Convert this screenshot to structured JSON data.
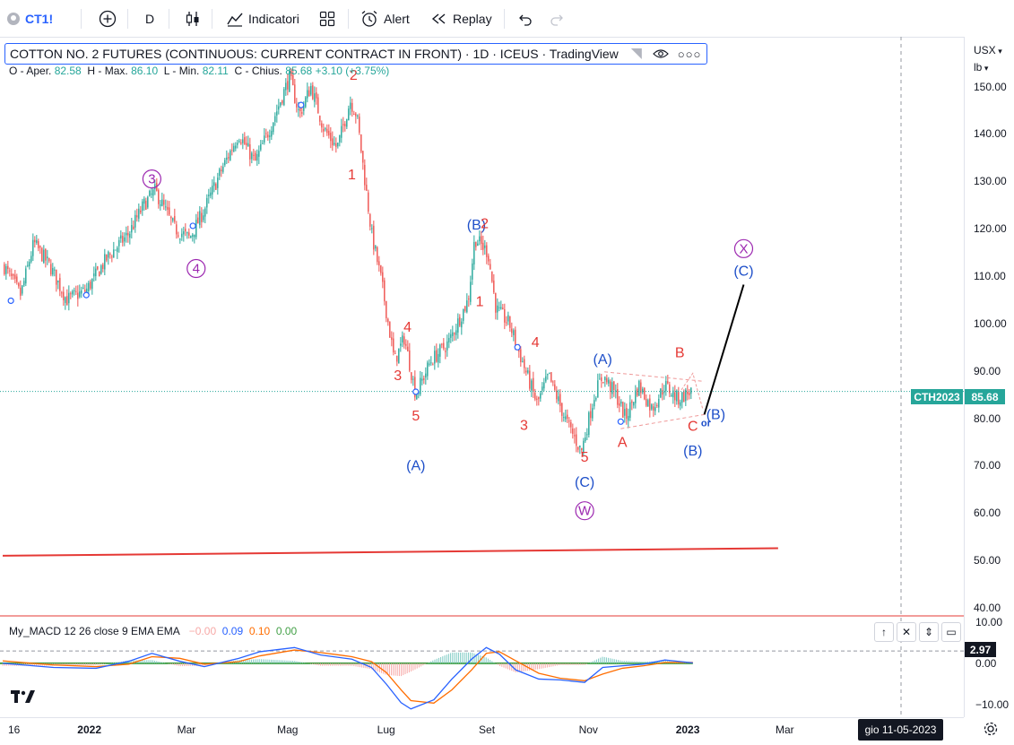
{
  "toolbar": {
    "symbol": "CT1!",
    "interval": "D",
    "indicators_label": "Indicatori",
    "alert_label": "Alert",
    "replay_label": "Replay"
  },
  "legend": {
    "title": "COTTON NO. 2 FUTURES (CONTINUOUS: CURRENT CONTRACT IN FRONT) · 1D · ICEUS · TradingView",
    "o_label": "O - Aper.",
    "o_value": "82.58",
    "h_label": "H - Max.",
    "h_value": "86.10",
    "l_label": "L - Min.",
    "l_value": "82.11",
    "c_label": "C - Chius.",
    "c_value": "85.68",
    "change": "+3.10 (+3.75%)"
  },
  "right_axis": {
    "currency": "USX",
    "unit": "lb",
    "price_badge_symbol": "CTH2023",
    "price_badge_value": "85.68",
    "macd_badge_value": "2.97"
  },
  "macd": {
    "name": "My_MACD 12 26 close 9 EMA EMA",
    "v1": "−0.00",
    "v2": "0.09",
    "v3": "0.10",
    "v4": "0.00"
  },
  "date_badge": "gio 11-05-2023",
  "colors": {
    "up": "#26a69a",
    "down": "#ef5350",
    "wave_red": "#e53935",
    "wave_blue": "#1e4fc9",
    "wave_purple": "#9c27b0",
    "macd_line": "#2962ff",
    "signal_line": "#ff6d00",
    "accent": "#2962ff"
  },
  "chart_data": {
    "type": "candlestick",
    "title": "COTTON NO. 2 FUTURES (CONTINUOUS: CURRENT CONTRACT IN FRONT) · 1D · ICEUS · TradingView",
    "price_axis": {
      "ticks": [
        "150.00",
        "140.00",
        "130.00",
        "120.00",
        "110.00",
        "100.00",
        "90.00",
        "80.00",
        "70.00",
        "60.00",
        "50.00",
        "40.00"
      ],
      "range": [
        38.5,
        160.5
      ]
    },
    "macd_axis": {
      "ticks": [
        "10.00",
        "0.00",
        "−10.00"
      ],
      "range": [
        -13,
        11
      ]
    },
    "time_axis": {
      "ticks": [
        "16",
        "2022",
        "Mar",
        "Mag",
        "Lug",
        "Set",
        "Nov",
        "2023",
        "Mar"
      ]
    },
    "price_path": [
      {
        "d": "2021-11-10",
        "p": 112
      },
      {
        "d": "2021-11-20",
        "p": 106
      },
      {
        "d": "2021-11-28",
        "p": 117
      },
      {
        "d": "2021-12-08",
        "p": 112
      },
      {
        "d": "2021-12-18",
        "p": 105
      },
      {
        "d": "2021-12-30",
        "p": 107
      },
      {
        "d": "2022-01-12",
        "p": 114
      },
      {
        "d": "2022-01-25",
        "p": 119
      },
      {
        "d": "2022-02-03",
        "p": 125
      },
      {
        "d": "2022-02-10",
        "p": 128
      },
      {
        "d": "2022-02-22",
        "p": 120
      },
      {
        "d": "2022-03-03",
        "p": 118
      },
      {
        "d": "2022-03-12",
        "p": 124
      },
      {
        "d": "2022-03-22",
        "p": 132
      },
      {
        "d": "2022-04-02",
        "p": 140
      },
      {
        "d": "2022-04-12",
        "p": 134
      },
      {
        "d": "2022-04-22",
        "p": 142
      },
      {
        "d": "2022-05-03",
        "p": 152
      },
      {
        "d": "2022-05-09",
        "p": 144
      },
      {
        "d": "2022-05-16",
        "p": 150
      },
      {
        "d": "2022-05-24",
        "p": 141
      },
      {
        "d": "2022-06-01",
        "p": 137
      },
      {
        "d": "2022-06-09",
        "p": 147
      },
      {
        "d": "2022-06-13",
        "p": 144
      },
      {
        "d": "2022-06-22",
        "p": 119
      },
      {
        "d": "2022-06-28",
        "p": 109
      },
      {
        "d": "2022-07-06",
        "p": 92
      },
      {
        "d": "2022-07-12",
        "p": 97
      },
      {
        "d": "2022-07-19",
        "p": 85
      },
      {
        "d": "2022-07-28",
        "p": 92
      },
      {
        "d": "2022-08-08",
        "p": 96
      },
      {
        "d": "2022-08-20",
        "p": 105
      },
      {
        "d": "2022-08-24",
        "p": 118
      },
      {
        "d": "2022-09-01",
        "p": 115
      },
      {
        "d": "2022-09-06",
        "p": 103
      },
      {
        "d": "2022-09-14",
        "p": 100
      },
      {
        "d": "2022-09-22",
        "p": 92
      },
      {
        "d": "2022-10-01",
        "p": 83
      },
      {
        "d": "2022-10-08",
        "p": 89
      },
      {
        "d": "2022-10-18",
        "p": 80
      },
      {
        "d": "2022-10-28",
        "p": 73
      },
      {
        "d": "2022-11-05",
        "p": 85
      },
      {
        "d": "2022-11-10",
        "p": 89
      },
      {
        "d": "2022-11-18",
        "p": 85
      },
      {
        "d": "2022-11-24",
        "p": 80
      },
      {
        "d": "2022-12-02",
        "p": 87
      },
      {
        "d": "2022-12-10",
        "p": 82
      },
      {
        "d": "2022-12-18",
        "p": 87
      },
      {
        "d": "2022-12-26",
        "p": 84
      },
      {
        "d": "2023-01-04",
        "p": 86
      }
    ],
    "last_close": 85.68,
    "horizontal_lines": [
      {
        "value": 85.68,
        "style": "dotted",
        "color": "#26a69a"
      }
    ],
    "red_trendline": [
      {
        "d": "2021-11-09",
        "p": 51.0
      },
      {
        "d": "2023-02-25",
        "p": 52.6
      }
    ],
    "wave_labels": [
      {
        "t": "③",
        "d": "2022-02-08",
        "p": 130.5,
        "c": "purple"
      },
      {
        "t": "④",
        "d": "2022-03-07",
        "p": 111.6,
        "c": "purple"
      },
      {
        "t": "2",
        "d": "2022-06-11",
        "p": 152.4,
        "c": "red"
      },
      {
        "t": "1",
        "d": "2022-06-10",
        "p": 131.4,
        "c": "red"
      },
      {
        "t": "4",
        "d": "2022-07-14",
        "p": 99.2,
        "c": "red"
      },
      {
        "t": "3",
        "d": "2022-07-08",
        "p": 89.0,
        "c": "red"
      },
      {
        "t": "5",
        "d": "2022-07-19",
        "p": 80.5,
        "c": "red"
      },
      {
        "t": "(A)",
        "d": "2022-07-19",
        "p": 70.0,
        "c": "blue"
      },
      {
        "t": "(B)",
        "d": "2022-08-25",
        "p": 120.8,
        "c": "blue"
      },
      {
        "t": "2",
        "d": "2022-08-30",
        "p": 121.1,
        "c": "red"
      },
      {
        "t": "1",
        "d": "2022-08-27",
        "p": 104.6,
        "c": "red"
      },
      {
        "t": "4",
        "d": "2022-09-30",
        "p": 96.0,
        "c": "red"
      },
      {
        "t": "3",
        "d": "2022-09-23",
        "p": 78.5,
        "c": "red"
      },
      {
        "t": "5",
        "d": "2022-10-30",
        "p": 71.8,
        "c": "red"
      },
      {
        "t": "(C)",
        "d": "2022-10-30",
        "p": 66.5,
        "c": "blue"
      },
      {
        "t": "Ⓦ",
        "d": "2022-10-30",
        "p": 60.5,
        "c": "purple"
      },
      {
        "t": "(A)",
        "d": "2022-11-10",
        "p": 92.4,
        "c": "blue"
      },
      {
        "t": "B",
        "d": "2022-12-27",
        "p": 93.8,
        "c": "red"
      },
      {
        "t": "A",
        "d": "2022-11-22",
        "p": 74.9,
        "c": "red"
      },
      {
        "t": "C",
        "d": "2023-01-04",
        "p": 78.3,
        "c": "red"
      },
      {
        "t": "(B)",
        "d": "2023-01-04",
        "p": 73.1,
        "c": "blue"
      },
      {
        "t": "or",
        "d": "2023-01-12",
        "p": 79.3,
        "c": "blue"
      },
      {
        "t": "(B)",
        "d": "2023-01-18",
        "p": 80.8,
        "c": "blue"
      },
      {
        "t": "(C)",
        "d": "2023-02-04",
        "p": 111.0,
        "c": "blue"
      },
      {
        "t": "Ⓧ",
        "d": "2023-02-04",
        "p": 115.8,
        "c": "purple"
      }
    ],
    "projection_line": [
      {
        "d": "2023-01-11",
        "p": 80.8
      },
      {
        "d": "2023-02-04",
        "p": 108.2
      }
    ],
    "triangle_lines": [
      [
        {
          "d": "2022-11-11",
          "p": 89.8
        },
        {
          "d": "2023-01-11",
          "p": 87.8
        }
      ],
      [
        {
          "d": "2022-11-21",
          "p": 77.8
        },
        {
          "d": "2023-01-11",
          "p": 80.8
        }
      ]
    ],
    "macd_line": [
      {
        "d": "2021-11-09",
        "v": 0.0
      },
      {
        "d": "2021-12-10",
        "v": -1.0
      },
      {
        "d": "2022-01-05",
        "v": -1.2
      },
      {
        "d": "2022-01-25",
        "v": 0.5
      },
      {
        "d": "2022-02-08",
        "v": 2.4
      },
      {
        "d": "2022-02-25",
        "v": 0.5
      },
      {
        "d": "2022-03-12",
        "v": -0.8
      },
      {
        "d": "2022-04-02",
        "v": 1.2
      },
      {
        "d": "2022-04-15",
        "v": 2.8
      },
      {
        "d": "2022-05-06",
        "v": 3.8
      },
      {
        "d": "2022-05-22",
        "v": 2.0
      },
      {
        "d": "2022-06-10",
        "v": 1.0
      },
      {
        "d": "2022-06-22",
        "v": -1.0
      },
      {
        "d": "2022-07-01",
        "v": -5.0
      },
      {
        "d": "2022-07-10",
        "v": -9.5
      },
      {
        "d": "2022-07-16",
        "v": -11.0
      },
      {
        "d": "2022-07-30",
        "v": -8.8
      },
      {
        "d": "2022-08-10",
        "v": -3.8
      },
      {
        "d": "2022-08-22",
        "v": 1.0
      },
      {
        "d": "2022-08-31",
        "v": 3.8
      },
      {
        "d": "2022-09-08",
        "v": 2.2
      },
      {
        "d": "2022-09-18",
        "v": -1.6
      },
      {
        "d": "2022-10-02",
        "v": -3.8
      },
      {
        "d": "2022-10-15",
        "v": -4.0
      },
      {
        "d": "2022-10-30",
        "v": -4.6
      },
      {
        "d": "2022-11-10",
        "v": -1.0
      },
      {
        "d": "2022-11-22",
        "v": -0.6
      },
      {
        "d": "2022-12-05",
        "v": -0.2
      },
      {
        "d": "2022-12-18",
        "v": 0.8
      },
      {
        "d": "2023-01-04",
        "v": 0.1
      }
    ],
    "signal_line": [
      {
        "d": "2021-11-09",
        "v": 0.6
      },
      {
        "d": "2021-12-10",
        "v": -0.4
      },
      {
        "d": "2022-01-05",
        "v": -0.8
      },
      {
        "d": "2022-01-25",
        "v": -0.2
      },
      {
        "d": "2022-02-08",
        "v": 1.6
      },
      {
        "d": "2022-02-25",
        "v": 1.2
      },
      {
        "d": "2022-03-12",
        "v": -0.2
      },
      {
        "d": "2022-04-02",
        "v": 0.4
      },
      {
        "d": "2022-04-15",
        "v": 1.8
      },
      {
        "d": "2022-05-06",
        "v": 3.2
      },
      {
        "d": "2022-05-22",
        "v": 2.6
      },
      {
        "d": "2022-06-10",
        "v": 1.6
      },
      {
        "d": "2022-06-22",
        "v": 0.4
      },
      {
        "d": "2022-07-01",
        "v": -2.2
      },
      {
        "d": "2022-07-10",
        "v": -6.4
      },
      {
        "d": "2022-07-16",
        "v": -9.0
      },
      {
        "d": "2022-07-30",
        "v": -9.6
      },
      {
        "d": "2022-08-10",
        "v": -6.4
      },
      {
        "d": "2022-08-22",
        "v": -1.6
      },
      {
        "d": "2022-08-31",
        "v": 2.4
      },
      {
        "d": "2022-09-08",
        "v": 2.8
      },
      {
        "d": "2022-09-18",
        "v": 0.6
      },
      {
        "d": "2022-10-02",
        "v": -2.4
      },
      {
        "d": "2022-10-15",
        "v": -3.6
      },
      {
        "d": "2022-10-30",
        "v": -4.2
      },
      {
        "d": "2022-11-10",
        "v": -2.6
      },
      {
        "d": "2022-11-22",
        "v": -1.2
      },
      {
        "d": "2022-12-05",
        "v": -0.6
      },
      {
        "d": "2022-12-18",
        "v": 0.2
      },
      {
        "d": "2023-01-04",
        "v": 0.2
      }
    ],
    "macd_reference_line": {
      "value": 2.97
    }
  }
}
